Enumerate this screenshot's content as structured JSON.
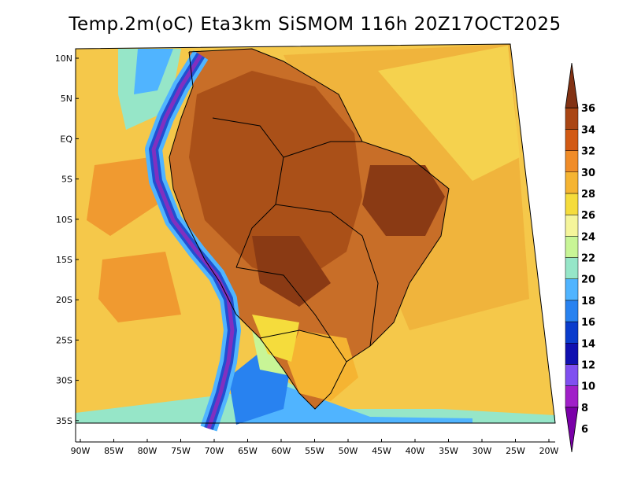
{
  "title": "Temp.2m(oC) Eta3km SiSMOM 116h 20Z17OCT2025",
  "map": {
    "lat_ticks": [
      "10N",
      "5N",
      "EQ",
      "5S",
      "10S",
      "15S",
      "20S",
      "25S",
      "30S",
      "35S"
    ],
    "lat_values": [
      10,
      5,
      0,
      -5,
      -10,
      -15,
      -20,
      -25,
      -30,
      -35
    ],
    "lon_ticks": [
      "90W",
      "85W",
      "80W",
      "75W",
      "70W",
      "65W",
      "60W",
      "55W",
      "50W",
      "45W",
      "40W",
      "35W",
      "30W",
      "25W",
      "20W"
    ],
    "lon_values": [
      -90,
      -85,
      -80,
      -75,
      -70,
      -65,
      -60,
      -55,
      -50,
      -45,
      -40,
      -35,
      -30,
      -25,
      -20
    ]
  },
  "legend": {
    "labels": [
      "6",
      "8",
      "10",
      "12",
      "14",
      "16",
      "18",
      "20",
      "22",
      "24",
      "26",
      "28",
      "30",
      "32",
      "34",
      "36"
    ],
    "colors": [
      "#7a00a8",
      "#a020c8",
      "#8050f0",
      "#1010b0",
      "#0a3ccc",
      "#2882f0",
      "#50b4ff",
      "#96e6c8",
      "#c8f596",
      "#f5f59b",
      "#f5dc3c",
      "#f5b432",
      "#f08c28",
      "#d25a14",
      "#aa4614",
      "#823214"
    ],
    "min_value": 4,
    "max_value": 38,
    "step": 2
  }
}
